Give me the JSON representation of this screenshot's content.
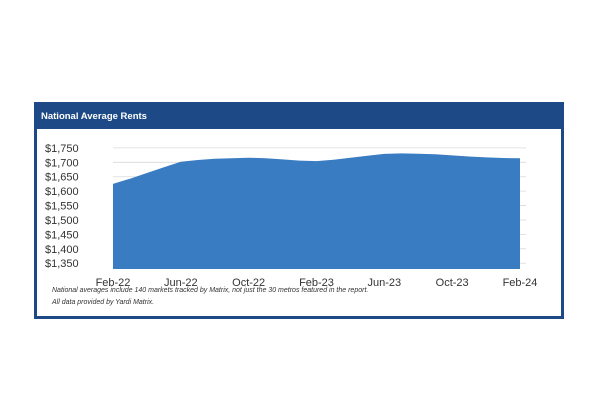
{
  "panel": {
    "title": "National Average Rents",
    "notes": [
      "National averages include 140 markets tracked by Matrix, not just the 30 metros featured in the report.",
      "All data provided by Yardi Matrix."
    ]
  },
  "chart_data": {
    "type": "area",
    "title": "National Average Rents",
    "xlabel": "",
    "ylabel": "",
    "x_ticks": [
      "Feb-22",
      "Jun-22",
      "Oct-22",
      "Feb-23",
      "Jun-23",
      "Oct-23",
      "Feb-24"
    ],
    "y_ticks": [
      "$1,350",
      "$1,400",
      "$1,450",
      "$1,500",
      "$1,550",
      "$1,600",
      "$1,650",
      "$1,700",
      "$1,750"
    ],
    "ylim": [
      1330,
      1760
    ],
    "grid": true,
    "legend": "none",
    "color": "#3a7cc1",
    "x": [
      "Feb-22",
      "Mar-22",
      "Apr-22",
      "May-22",
      "Jun-22",
      "Jul-22",
      "Aug-22",
      "Sep-22",
      "Oct-22",
      "Nov-22",
      "Dec-22",
      "Jan-23",
      "Feb-23",
      "Mar-23",
      "Apr-23",
      "May-23",
      "Jun-23",
      "Jul-23",
      "Aug-23",
      "Sep-23",
      "Oct-23",
      "Nov-23",
      "Dec-23",
      "Jan-24",
      "Feb-24"
    ],
    "values": [
      1625,
      1643,
      1663,
      1683,
      1702,
      1708,
      1712,
      1714,
      1716,
      1714,
      1710,
      1706,
      1704,
      1709,
      1716,
      1723,
      1729,
      1731,
      1730,
      1728,
      1724,
      1720,
      1717,
      1715,
      1714
    ]
  }
}
